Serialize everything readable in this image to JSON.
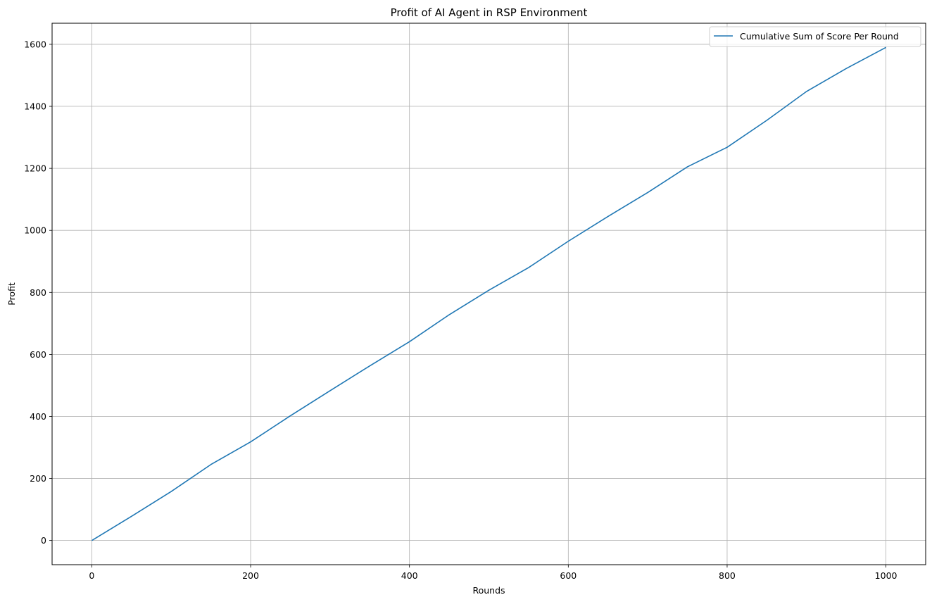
{
  "chart_data": {
    "type": "line",
    "title": "Profit of AI Agent in RSP Environment",
    "xlabel": "Rounds",
    "ylabel": "Profit",
    "xlim": [
      -50,
      1050
    ],
    "ylim": [
      -78,
      1668
    ],
    "xticks": [
      0,
      200,
      400,
      600,
      800,
      1000
    ],
    "yticks": [
      0,
      200,
      400,
      600,
      800,
      1000,
      1200,
      1400,
      1600
    ],
    "grid": true,
    "legend_position": "top-right",
    "series": [
      {
        "name": "Cumulative Sum of Score Per Round",
        "color": "#1f77b4",
        "x": [
          0,
          50,
          100,
          150,
          200,
          250,
          300,
          350,
          400,
          450,
          500,
          550,
          600,
          650,
          700,
          750,
          800,
          850,
          900,
          950,
          1000
        ],
        "y": [
          0,
          78,
          158,
          245,
          318,
          402,
          483,
          563,
          641,
          728,
          807,
          880,
          965,
          1045,
          1122,
          1205,
          1268,
          1355,
          1448,
          1522,
          1590
        ]
      }
    ]
  }
}
